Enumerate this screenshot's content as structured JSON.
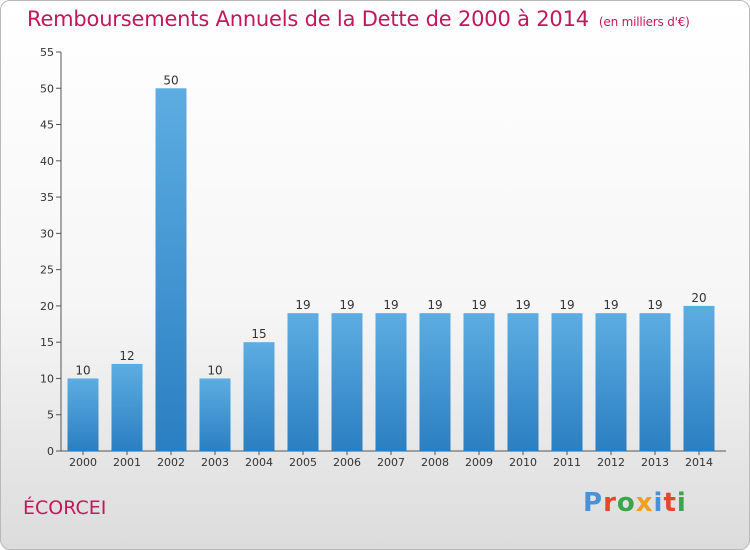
{
  "title": "Remboursements Annuels de la Dette de 2000 à 2014",
  "subtitle": "(en milliers d'€)",
  "commune": "ÉCORCEI",
  "logo": {
    "text": "Proxiti",
    "letter_colors": [
      "#4a90d9",
      "#e8442e",
      "#3aa54a",
      "#f0a020",
      "#4a90d9",
      "#e8442e",
      "#3aa54a"
    ]
  },
  "colors": {
    "title": "#c2185b",
    "bar_light": "#5dade2",
    "bar_dark": "#2a7fc2"
  },
  "chart_data": {
    "type": "bar",
    "title": "Remboursements Annuels de la Dette de 2000 à 2014",
    "subtitle": "(en milliers d'€)",
    "categories": [
      "2000",
      "2001",
      "2002",
      "2003",
      "2004",
      "2005",
      "2006",
      "2007",
      "2008",
      "2009",
      "2010",
      "2011",
      "2012",
      "2013",
      "2014"
    ],
    "values": [
      10,
      12,
      50,
      10,
      15,
      19,
      19,
      19,
      19,
      19,
      19,
      19,
      19,
      19,
      20
    ],
    "ylim": [
      0,
      55
    ],
    "yticks": [
      0,
      5,
      10,
      15,
      20,
      25,
      30,
      35,
      40,
      45,
      50,
      55
    ],
    "grid": false,
    "legend": "none"
  }
}
